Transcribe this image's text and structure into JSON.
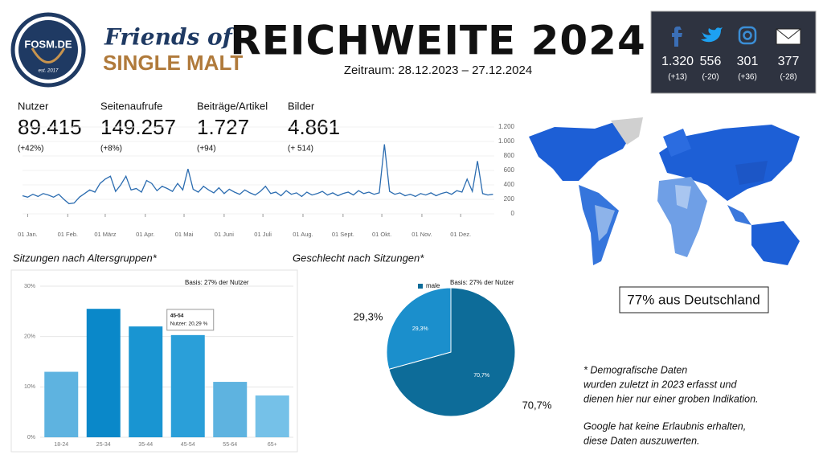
{
  "header": {
    "badge": "FOSM.DE",
    "badge_sub": "est. 2017",
    "brand_top": "Friends of",
    "brand_bottom": "SINGLE MALT",
    "title": "REICHWEITE 2024",
    "subtitle": "Zeitraum: 28.12.2023 – 27.12.2024"
  },
  "social": [
    {
      "value": "1.320",
      "change": "(+13)"
    },
    {
      "value": "556",
      "change": "(-20)"
    },
    {
      "value": "301",
      "change": "(+36)"
    },
    {
      "value": "377",
      "change": "(-28)"
    }
  ],
  "kpis": [
    {
      "label": "Nutzer",
      "value": "89.415",
      "change": "(+42%)"
    },
    {
      "label": "Seitenaufrufe",
      "value": "149.257",
      "change": "(+8%)"
    },
    {
      "label": "Beiträge/Artikel",
      "value": "1.727",
      "change": "(+94)"
    },
    {
      "label": "Bilder",
      "value": "4.861",
      "change": "(+ 514)"
    }
  ],
  "map": {
    "label": "77% aus Deutschland"
  },
  "notes": [
    "* Demografische Daten",
    "wurden zuletzt in 2023 erfasst und",
    "dienen hier nur einer groben Indikation.",
    "Google hat keine Erlaubnis erhalten,",
    "diese Daten auszuwerten."
  ],
  "chart_data": [
    {
      "type": "line",
      "color": "#2b6cb0",
      "x": [
        0,
        4,
        8,
        12,
        16,
        20,
        24,
        28,
        32,
        36,
        40,
        44,
        48,
        52,
        56,
        60,
        64,
        68,
        72,
        76,
        80,
        84,
        88,
        92,
        96,
        100,
        104,
        108,
        112,
        116,
        120,
        124,
        128,
        132,
        136,
        140,
        144,
        148,
        152,
        156,
        160,
        164,
        168,
        172,
        176,
        180,
        184,
        188,
        192,
        196,
        200,
        204,
        208,
        212,
        216,
        220,
        224,
        228,
        232,
        236,
        240,
        244,
        248,
        252,
        256,
        260,
        264,
        268,
        272,
        276,
        280,
        284,
        288,
        292,
        296,
        300,
        304,
        308,
        312,
        316,
        320,
        324,
        328,
        332,
        336,
        340,
        344,
        348,
        352,
        356,
        360,
        364
      ],
      "values": [
        250,
        230,
        270,
        240,
        280,
        260,
        230,
        270,
        200,
        140,
        150,
        230,
        280,
        330,
        300,
        420,
        480,
        520,
        310,
        400,
        520,
        330,
        350,
        300,
        460,
        420,
        320,
        380,
        350,
        310,
        420,
        330,
        620,
        340,
        300,
        380,
        330,
        290,
        360,
        280,
        340,
        300,
        270,
        330,
        290,
        260,
        310,
        380,
        280,
        300,
        250,
        320,
        270,
        290,
        240,
        300,
        260,
        280,
        310,
        260,
        290,
        250,
        280,
        300,
        260,
        320,
        280,
        300,
        270,
        290,
        960,
        310,
        270,
        290,
        250,
        270,
        240,
        280,
        260,
        290,
        250,
        280,
        300,
        270,
        320,
        300,
        480,
        310,
        730,
        280,
        260,
        270
      ],
      "xlim": [
        0,
        365
      ],
      "xticks": [
        {
          "value": 4,
          "label": "01 Jan."
        },
        {
          "value": 35,
          "label": "01 Feb."
        },
        {
          "value": 64,
          "label": "01 März"
        },
        {
          "value": 95,
          "label": "01 Apr."
        },
        {
          "value": 125,
          "label": "01 Mai"
        },
        {
          "value": 156,
          "label": "01 Juni"
        },
        {
          "value": 186,
          "label": "01 Juli"
        },
        {
          "value": 217,
          "label": "01 Aug."
        },
        {
          "value": 248,
          "label": "01 Sept."
        },
        {
          "value": 278,
          "label": "01 Okt."
        },
        {
          "value": 309,
          "label": "01 Nov."
        },
        {
          "value": 339,
          "label": "01 Dez."
        }
      ],
      "ylim": [
        0,
        1200
      ],
      "yticks": [
        0,
        200,
        400,
        600,
        800,
        {
          "value": 1000,
          "label": "1.000"
        },
        {
          "value": 1200,
          "label": "1.200"
        }
      ]
    },
    {
      "type": "bar",
      "title": "Sitzungen nach Altersgruppen*",
      "subtitle": "Basis: 27% der Nutzer",
      "categories": [
        "18-24",
        "25-34",
        "35-44",
        "45-54",
        "55-64",
        "65+"
      ],
      "values": [
        13,
        25.5,
        22,
        20.29,
        11,
        8.3
      ],
      "colors": [
        "#5eb3e0",
        "#0a88c9",
        "#1995d2",
        "#2a9fd9",
        "#5eb3e0",
        "#75c1e8"
      ],
      "ylim": [
        0,
        30
      ],
      "yticks": [
        {
          "value": 0,
          "label": "0%"
        },
        {
          "value": 10,
          "label": "10%"
        },
        {
          "value": 20,
          "label": "20%"
        },
        {
          "value": 30,
          "label": "30%"
        }
      ],
      "grid": true,
      "annotation": {
        "title": "45-54",
        "text": "Nutzer: 20,29 %"
      }
    },
    {
      "type": "pie",
      "title": "Geschlecht nach Sitzungen*",
      "subtitle": "Basis: 27% der Nutzer",
      "categories": [
        "male",
        null
      ],
      "values": [
        70.7,
        29.3
      ],
      "value_labels": [
        "70,7%",
        "29,3%"
      ],
      "colors": [
        "#0d6c99",
        "#1b8fcc"
      ]
    }
  ]
}
